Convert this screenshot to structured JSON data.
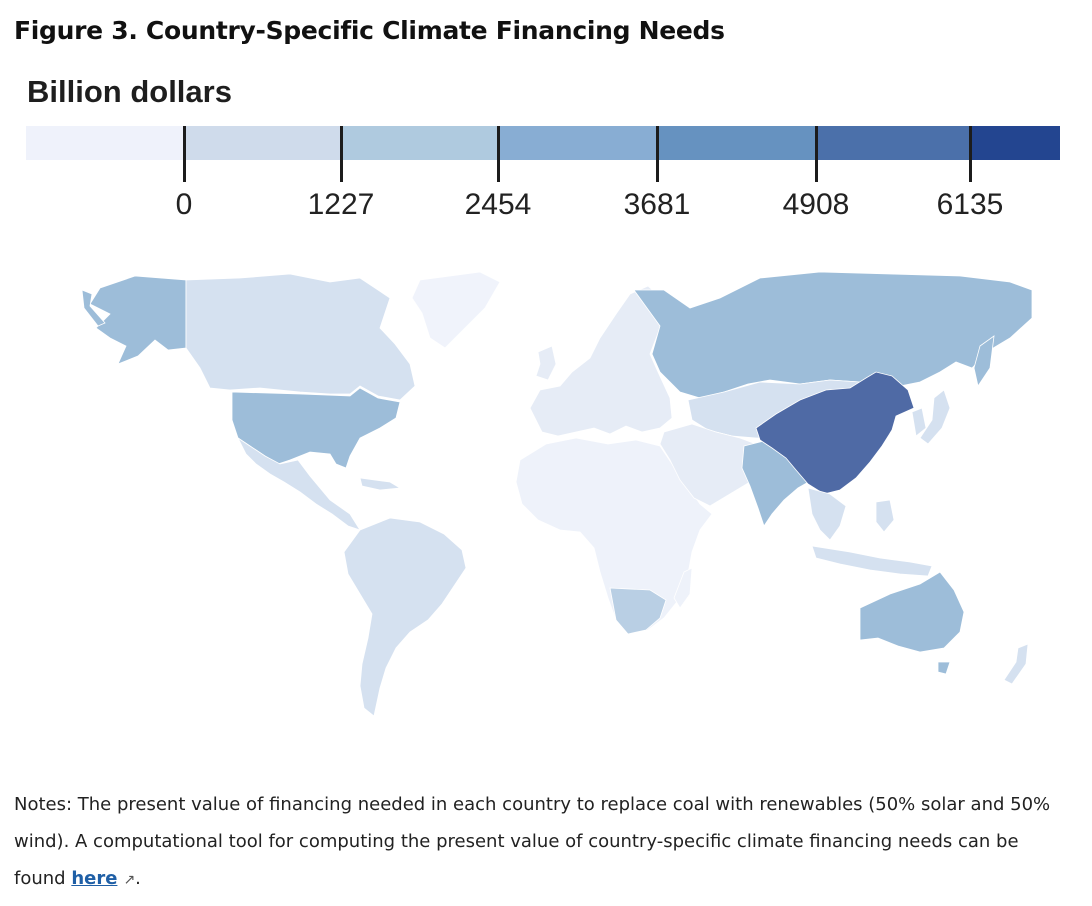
{
  "figure": {
    "title": "Figure 3. Country-Specific Climate Financing Needs"
  },
  "legend": {
    "title": "Billion dollars",
    "ticks": [
      "0",
      "1227",
      "2454",
      "3681",
      "4908",
      "6135"
    ],
    "colors": [
      "#eff2fb",
      "#cfdbeb",
      "#afcadf",
      "#88add3",
      "#6692c0",
      "#4b70aa",
      "#234590"
    ]
  },
  "map": {
    "land_fill_default": "#eef2fa",
    "regions": [
      {
        "name": "alaska",
        "color": "#9dbdd9"
      },
      {
        "name": "canada",
        "color": "#d5e1f0"
      },
      {
        "name": "greenland",
        "color": "#f0f3fb"
      },
      {
        "name": "usa",
        "color": "#9dbdd9"
      },
      {
        "name": "mexico",
        "color": "#d5e1f0"
      },
      {
        "name": "south-america",
        "color": "#d5e1f0"
      },
      {
        "name": "europe",
        "color": "#e6ecf6"
      },
      {
        "name": "africa",
        "color": "#eef2fa"
      },
      {
        "name": "south-africa",
        "color": "#b9cfe4"
      },
      {
        "name": "russia",
        "color": "#9dbdd9"
      },
      {
        "name": "central-asia",
        "color": "#d5e1f0"
      },
      {
        "name": "middle-east",
        "color": "#e6ecf6"
      },
      {
        "name": "india",
        "color": "#9dbdd9"
      },
      {
        "name": "china",
        "color": "#4f6aa5"
      },
      {
        "name": "southeast-asia",
        "color": "#d5e1f0"
      },
      {
        "name": "japan",
        "color": "#d5e1f0"
      },
      {
        "name": "australia",
        "color": "#9dbdd9"
      },
      {
        "name": "new-zealand",
        "color": "#d5e1f0"
      }
    ]
  },
  "notes": {
    "text": "Notes: The present value of financing needed in each country to replace coal with renewables (50% solar and 50% wind). A computational tool for computing the present value of country-specific climate financing needs can be found ",
    "link_label": "here",
    "link_icon": "external-link-icon",
    "tail": "."
  }
}
